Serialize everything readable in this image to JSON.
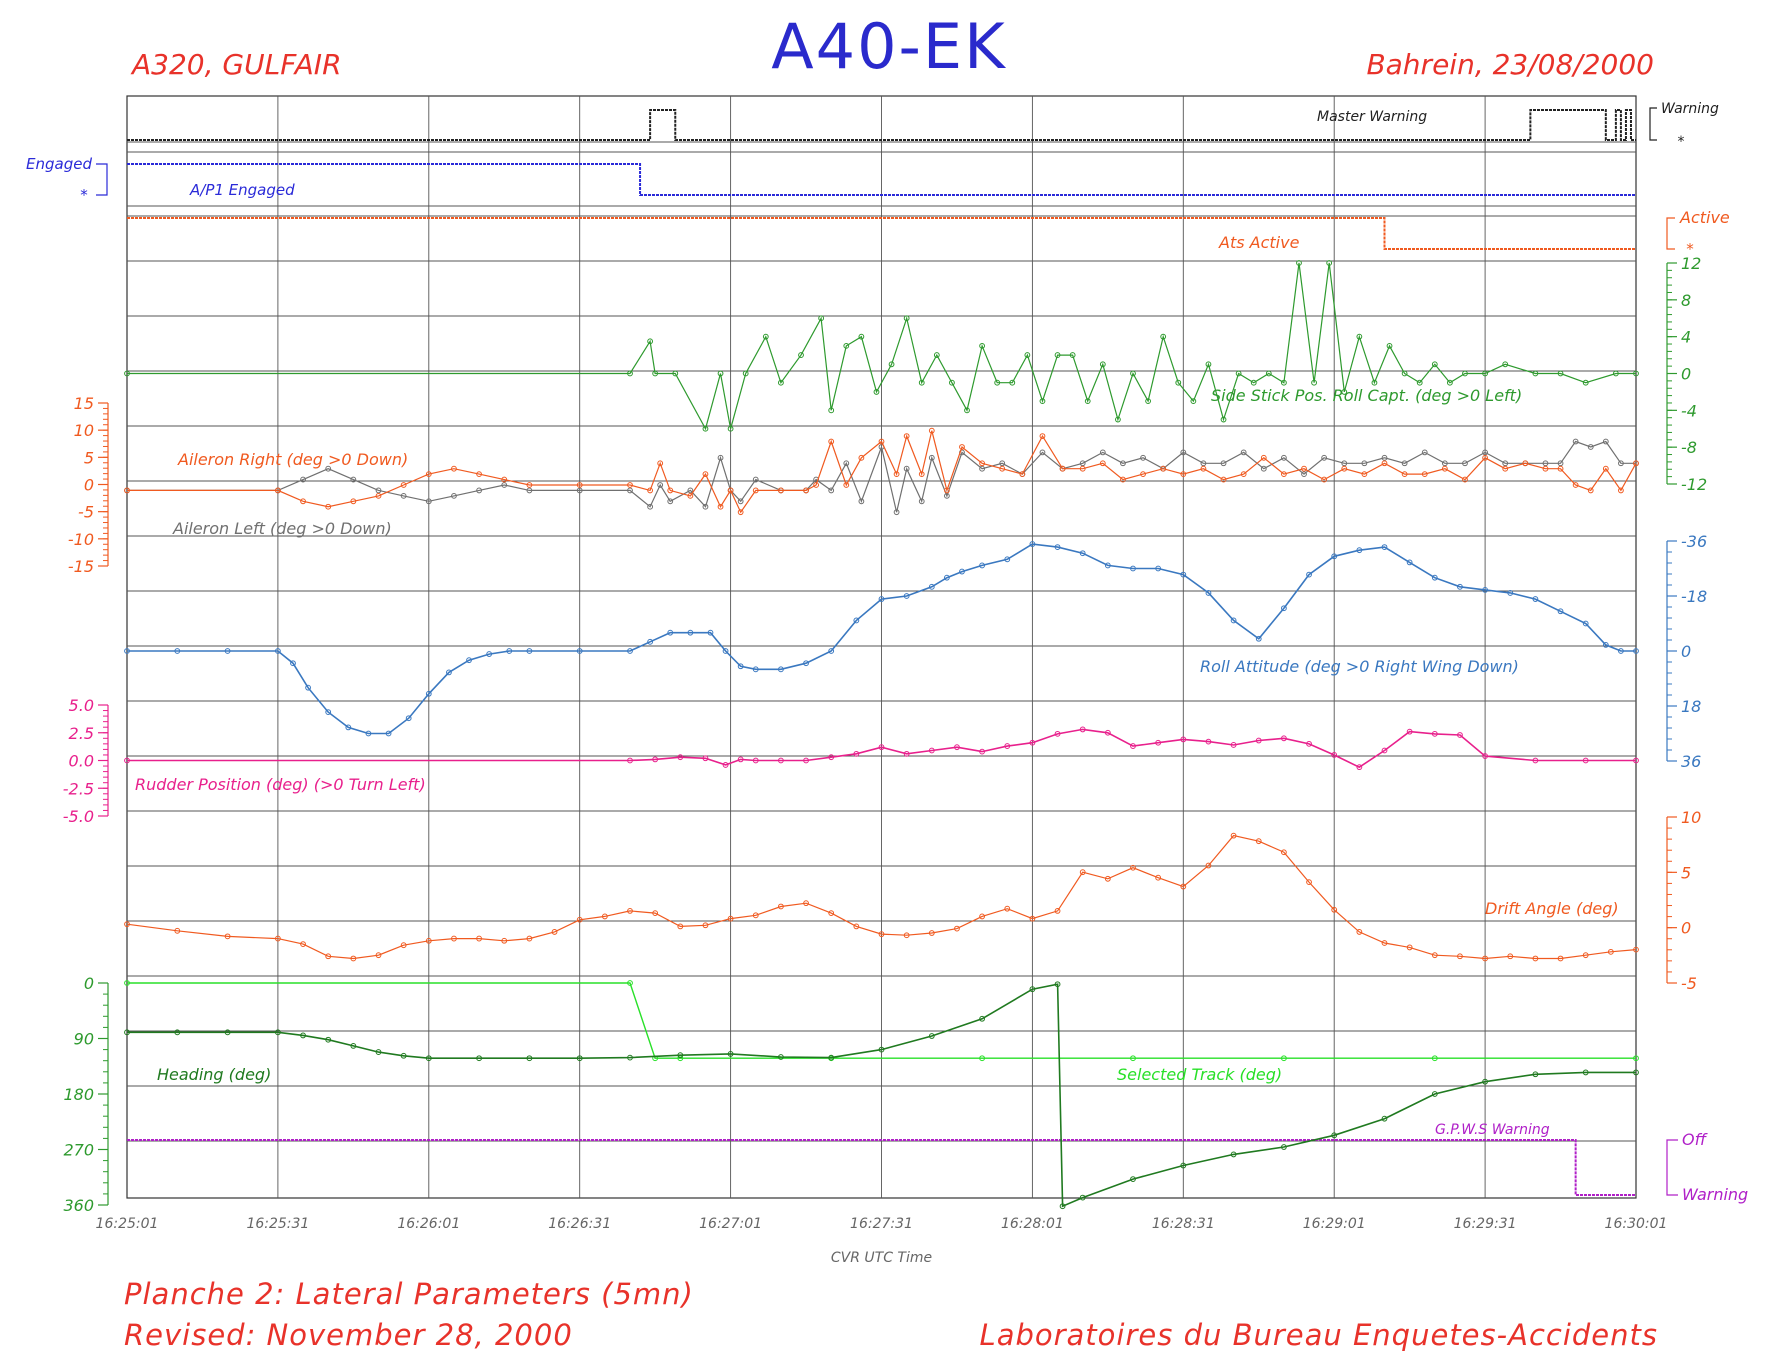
{
  "header": {
    "title": "A40-EK",
    "left_subtitle": "A320, GULFAIR",
    "right_subtitle": "Bahrein, 23/08/2000"
  },
  "footer": {
    "line1": "Planche 2: Lateral Parameters (5mn)",
    "line2": "Revised: November 28, 2000",
    "credit": "Laboratoires du Bureau Enquetes-Accidents"
  },
  "colors": {
    "black": "#222222",
    "blue": "#2a2ad8",
    "orange": "#f05a20",
    "green": "#2e9a2e",
    "grey": "#707070",
    "steel_blue": "#3a78c0",
    "pink": "#e8208c",
    "lime": "#28e028",
    "dark_green": "#207a20",
    "magenta": "#b020c8",
    "grid": "#555555"
  },
  "chart_data": {
    "type": "line",
    "xlabel": "CVR UTC Time",
    "x_ticks": [
      "16:25:01",
      "16:25:31",
      "16:26:01",
      "16:26:31",
      "16:27:01",
      "16:27:31",
      "16:28:01",
      "16:28:31",
      "16:29:01",
      "16:29:31",
      "16:30:01"
    ],
    "x_range_s": [
      0,
      300
    ],
    "discrete": [
      {
        "name": "Master Warning",
        "color": "#222222",
        "levels": [
          "Warning",
          "*"
        ],
        "segments": [
          [
            0,
            104,
            0
          ],
          [
            104,
            105,
            1
          ],
          [
            105,
            109,
            1
          ],
          [
            109,
            110,
            0
          ],
          [
            110,
            279,
            0
          ],
          [
            279,
            280,
            1
          ],
          [
            280,
            294,
            1
          ],
          [
            294,
            296,
            0
          ],
          [
            296,
            297,
            1
          ],
          [
            297,
            298,
            0
          ],
          [
            298,
            299,
            1
          ],
          [
            299,
            300,
            0
          ]
        ]
      },
      {
        "name": "A/P1 Engaged",
        "color": "#2a2ad8",
        "levels": [
          "Engaged",
          "*"
        ],
        "segments": [
          [
            0,
            102,
            1
          ],
          [
            102,
            300,
            0
          ]
        ]
      },
      {
        "name": "Ats Active",
        "color": "#f05a20",
        "levels": [
          "Active",
          "*"
        ],
        "segments": [
          [
            0,
            250,
            1
          ],
          [
            250,
            300,
            0
          ]
        ]
      },
      {
        "name": "G.P.W.S Warning",
        "color": "#b020c8",
        "levels": [
          "Off",
          "Warning"
        ],
        "segments": [
          [
            0,
            288,
            1
          ],
          [
            288,
            300,
            0
          ]
        ]
      }
    ],
    "series": [
      {
        "name": "Side Stick Pos. Roll Capt. (deg >0 Left)",
        "color": "#2e9a2e",
        "axis_ticks": [
          12,
          8,
          4,
          0,
          -4,
          -8,
          -12
        ],
        "x": [
          0,
          100,
          104,
          105,
          109,
          115,
          118,
          120,
          123,
          127,
          130,
          134,
          138,
          140,
          143,
          146,
          149,
          152,
          155,
          158,
          161,
          164,
          167,
          170,
          173,
          176,
          179,
          182,
          185,
          188,
          191,
          194,
          197,
          200,
          203,
          206,
          209,
          212,
          215,
          218,
          221,
          224,
          227,
          230,
          233,
          236,
          239,
          242,
          245,
          248,
          251,
          254,
          257,
          260,
          263,
          266,
          270,
          274,
          280,
          285,
          290,
          296,
          300
        ],
        "y": [
          0,
          0,
          3.5,
          0,
          0,
          -6,
          0,
          -6,
          0,
          4,
          -1,
          2,
          6,
          -4,
          3,
          4,
          -2,
          1,
          6,
          -1,
          2,
          -1,
          -4,
          3,
          -1,
          -1,
          2,
          -3,
          2,
          2,
          -3,
          1,
          -5,
          0,
          -3,
          4,
          -1,
          -3,
          1,
          -5,
          0,
          -1,
          0,
          -1,
          12,
          -1,
          12,
          -2,
          4,
          -1,
          3,
          0,
          -1,
          1,
          -1,
          0,
          0,
          1,
          0,
          0,
          -1,
          0,
          0
        ]
      },
      {
        "name": "Aileron Right (deg >0 Down)",
        "color": "#f05a20",
        "axis_ticks": [
          15,
          10,
          5,
          0,
          -5,
          -10,
          -15
        ],
        "x": [
          0,
          30,
          35,
          40,
          45,
          50,
          55,
          60,
          65,
          70,
          75,
          80,
          90,
          100,
          104,
          106,
          108,
          112,
          115,
          118,
          120,
          122,
          125,
          130,
          135,
          137,
          140,
          143,
          146,
          150,
          153,
          155,
          158,
          160,
          163,
          166,
          170,
          174,
          178,
          182,
          186,
          190,
          194,
          198,
          202,
          206,
          210,
          214,
          218,
          222,
          226,
          230,
          234,
          238,
          242,
          246,
          250,
          254,
          258,
          262,
          266,
          270,
          274,
          278,
          282,
          285,
          288,
          291,
          294,
          297,
          300
        ],
        "y": [
          -1,
          -1,
          -3,
          -4,
          -3,
          -2,
          0,
          2,
          3,
          2,
          1,
          0,
          0,
          0,
          -1,
          4,
          -1,
          -2,
          2,
          -4,
          -1,
          -5,
          -1,
          -1,
          -1,
          0,
          8,
          0,
          5,
          8,
          2,
          9,
          2,
          10,
          -1,
          7,
          4,
          3,
          2,
          9,
          3,
          3,
          4,
          1,
          2,
          3,
          2,
          3,
          1,
          2,
          5,
          2,
          3,
          1,
          3,
          2,
          4,
          2,
          2,
          3,
          1,
          5,
          3,
          4,
          3,
          3,
          0,
          -1,
          3,
          -1,
          4
        ]
      },
      {
        "name": "Aileron Left (deg >0 Down)",
        "color": "#707070",
        "axis_ticks": [
          15,
          10,
          5,
          0,
          -5,
          -10,
          -15
        ],
        "x": [
          0,
          30,
          35,
          40,
          45,
          50,
          55,
          60,
          65,
          70,
          75,
          80,
          90,
          100,
          104,
          106,
          108,
          112,
          115,
          118,
          120,
          122,
          125,
          130,
          135,
          137,
          140,
          143,
          146,
          150,
          153,
          155,
          158,
          160,
          163,
          166,
          170,
          174,
          178,
          182,
          186,
          190,
          194,
          198,
          202,
          206,
          210,
          214,
          218,
          222,
          226,
          230,
          234,
          238,
          242,
          246,
          250,
          254,
          258,
          262,
          266,
          270,
          274,
          278,
          282,
          285,
          288,
          291,
          294,
          297,
          300
        ],
        "y": [
          -1,
          -1,
          1,
          3,
          1,
          -1,
          -2,
          -3,
          -2,
          -1,
          0,
          -1,
          -1,
          -1,
          -4,
          0,
          -3,
          -1,
          -4,
          5,
          -1,
          -3,
          1,
          -1,
          -1,
          1,
          -1,
          4,
          -3,
          7,
          -5,
          3,
          -3,
          5,
          -2,
          6,
          3,
          4,
          2,
          6,
          3,
          4,
          6,
          4,
          5,
          3,
          6,
          4,
          4,
          6,
          3,
          5,
          2,
          5,
          4,
          4,
          5,
          4,
          6,
          4,
          4,
          6,
          4,
          4,
          4,
          4,
          8,
          7,
          8,
          4,
          4
        ]
      },
      {
        "name": "Roll Attitude (deg >0 Right Wing Down)",
        "color": "#3a78c0",
        "axis_ticks": [
          -36,
          -18,
          0,
          18,
          36
        ],
        "x": [
          0,
          10,
          20,
          30,
          33,
          36,
          40,
          44,
          48,
          52,
          56,
          60,
          64,
          68,
          72,
          76,
          80,
          90,
          100,
          104,
          108,
          112,
          116,
          119,
          122,
          125,
          130,
          135,
          140,
          145,
          150,
          155,
          160,
          163,
          166,
          170,
          175,
          180,
          185,
          190,
          195,
          200,
          205,
          210,
          215,
          220,
          225,
          230,
          235,
          240,
          245,
          250,
          255,
          260,
          265,
          270,
          275,
          280,
          285,
          290,
          294,
          297,
          300
        ],
        "y": [
          0,
          0,
          0,
          0,
          4,
          12,
          20,
          25,
          27,
          27,
          22,
          14,
          7,
          3,
          1,
          0,
          0,
          0,
          0,
          -3,
          -6,
          -6,
          -6,
          0,
          5,
          6,
          6,
          4,
          0,
          -10,
          -17,
          -18,
          -21,
          -24,
          -26,
          -28,
          -30,
          -35,
          -34,
          -32,
          -28,
          -27,
          -27,
          -25,
          -19,
          -10,
          -4,
          -14,
          -25,
          -31,
          -33,
          -34,
          -29,
          -24,
          -21,
          -20,
          -19,
          -17,
          -13,
          -9,
          -2,
          0,
          0
        ]
      },
      {
        "name": "Rudder Position (deg) (>0 Turn Left)",
        "color": "#e8208c",
        "axis_ticks": [
          5.0,
          2.5,
          0.0,
          -2.5,
          -5.0
        ],
        "x": [
          0,
          100,
          105,
          110,
          115,
          119,
          122,
          125,
          130,
          135,
          140,
          145,
          150,
          155,
          160,
          165,
          170,
          175,
          180,
          185,
          190,
          195,
          200,
          205,
          210,
          215,
          220,
          225,
          230,
          235,
          240,
          245,
          250,
          255,
          260,
          265,
          270,
          280,
          290,
          300
        ],
        "y": [
          0,
          0,
          0.1,
          0.3,
          0.2,
          -0.4,
          0.1,
          0,
          0,
          0,
          0.3,
          0.6,
          1.2,
          0.6,
          0.9,
          1.2,
          0.8,
          1.3,
          1.6,
          2.4,
          2.8,
          2.5,
          1.3,
          1.6,
          1.9,
          1.7,
          1.4,
          1.8,
          2,
          1.5,
          0.5,
          -0.6,
          0.9,
          2.6,
          2.4,
          2.3,
          0.4,
          0,
          0,
          0
        ]
      },
      {
        "name": "Drift Angle (deg)",
        "color": "#f05a20",
        "axis_ticks": [
          10,
          5,
          0,
          -5
        ],
        "x": [
          0,
          10,
          20,
          30,
          35,
          40,
          45,
          50,
          55,
          60,
          65,
          70,
          75,
          80,
          85,
          90,
          95,
          100,
          105,
          110,
          115,
          120,
          125,
          130,
          135,
          140,
          145,
          150,
          155,
          160,
          165,
          170,
          175,
          180,
          185,
          190,
          195,
          200,
          205,
          210,
          215,
          220,
          225,
          230,
          235,
          240,
          245,
          250,
          255,
          260,
          265,
          270,
          275,
          280,
          285,
          290,
          295,
          300
        ],
        "y": [
          0.3,
          -0.3,
          -0.8,
          -1,
          -1.5,
          -2.6,
          -2.8,
          -2.5,
          -1.6,
          -1.2,
          -1,
          -1,
          -1.2,
          -1,
          -0.4,
          0.7,
          1,
          1.5,
          1.3,
          0.1,
          0.2,
          0.8,
          1.1,
          1.9,
          2.2,
          1.3,
          0.1,
          -0.6,
          -0.7,
          -0.5,
          -0.1,
          1,
          1.7,
          0.8,
          1.5,
          5,
          4.4,
          5.4,
          4.5,
          3.7,
          5.6,
          8.3,
          7.8,
          6.8,
          4.1,
          1.6,
          -0.4,
          -1.4,
          -1.8,
          -2.5,
          -2.6,
          -2.8,
          -2.6,
          -2.8,
          -2.8,
          -2.5,
          -2.2,
          -2
        ]
      },
      {
        "name": "Heading (deg)",
        "color": "#207a20",
        "axis_ticks": [
          0,
          90,
          180,
          270,
          360
        ],
        "x": [
          0,
          10,
          20,
          30,
          35,
          40,
          45,
          50,
          55,
          60,
          70,
          80,
          90,
          100,
          110,
          120,
          130,
          140,
          150,
          160,
          170,
          180,
          185,
          186,
          190,
          200,
          210,
          220,
          230,
          240,
          250,
          260,
          270,
          280,
          290,
          300
        ],
        "y": [
          80,
          80,
          80,
          80,
          85,
          92,
          102,
          112,
          118,
          122,
          122,
          122,
          122,
          121,
          117,
          115,
          120,
          121,
          108,
          86,
          58,
          10,
          2,
          362,
          348,
          318,
          296,
          278,
          266,
          247,
          220,
          180,
          160,
          148,
          145,
          145
        ]
      },
      {
        "name": "Selected Track (deg)",
        "color": "#28e028",
        "axis_ticks": [
          0,
          90,
          180,
          270,
          360
        ],
        "x": [
          0,
          100,
          105,
          110,
          140,
          170,
          200,
          230,
          260,
          300
        ],
        "y": [
          0,
          0,
          122,
          122,
          122,
          122,
          122,
          122,
          122,
          122
        ]
      }
    ]
  }
}
